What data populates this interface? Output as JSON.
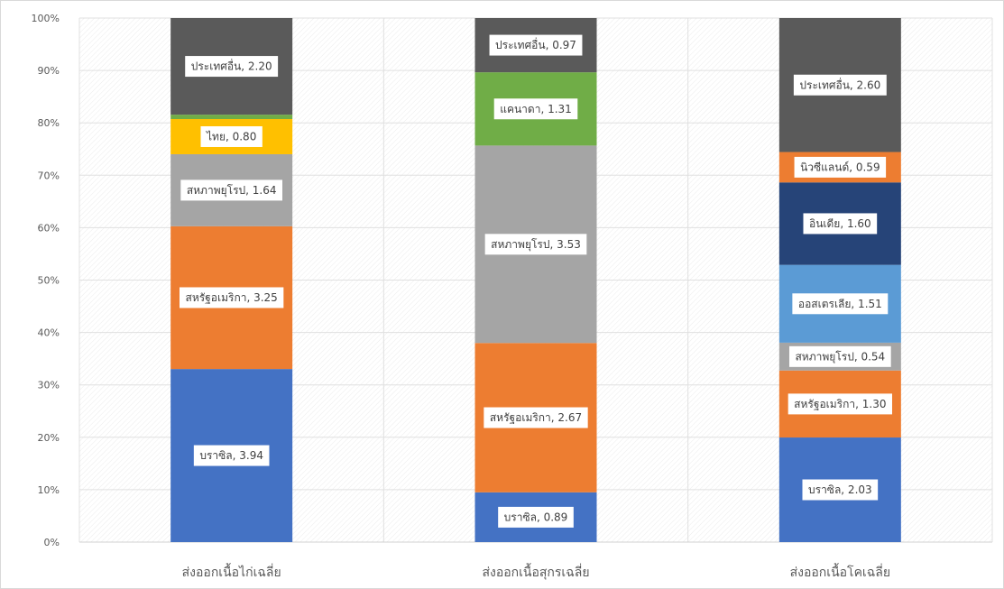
{
  "chart_data": {
    "type": "bar",
    "stacked": "percent",
    "title": "",
    "xlabel": "",
    "ylabel": "",
    "ylim": [
      0,
      100
    ],
    "yticks": [
      "0%",
      "10%",
      "20%",
      "30%",
      "40%",
      "50%",
      "60%",
      "70%",
      "80%",
      "90%",
      "100%"
    ],
    "grid": true,
    "categories": [
      "ส่งออกเนื้อไก่เฉลี่ย",
      "ส่งออกเนื้อสุกรเฉลี่ย",
      "ส่งออกเนื้อโคเฉลี่ย"
    ],
    "bars": [
      {
        "segments": [
          {
            "label": "บราซิล",
            "value": 3.94,
            "value_text": "3.94",
            "color": "#4472C4",
            "border": "#4472C4"
          },
          {
            "label": "สหรัฐอเมริกา",
            "value": 3.25,
            "value_text": "3.25",
            "color": "#ED7D31",
            "border": "#ED7D31"
          },
          {
            "label": "สหภาพยุโรป",
            "value": 1.64,
            "value_text": "1.64",
            "color": "#A5A5A5",
            "border": "#A5A5A5"
          },
          {
            "label": "ไทย",
            "value": 0.8,
            "value_text": "0.80",
            "color": "#FFC000",
            "border": "#FFC000"
          },
          {
            "label": "",
            "value": 0.1,
            "value_text": "",
            "color": "#70AD47",
            "border": "#70AD47"
          },
          {
            "label": "ประเทศอื่น",
            "value": 2.2,
            "value_text": "2.20",
            "color": "#5A5A5A",
            "border": "#5A5A5A"
          }
        ]
      },
      {
        "segments": [
          {
            "label": "บราซิล",
            "value": 0.89,
            "value_text": "0.89",
            "color": "#4472C4",
            "border": "#4472C4"
          },
          {
            "label": "สหรัฐอเมริกา",
            "value": 2.67,
            "value_text": "2.67",
            "color": "#ED7D31",
            "border": "#ED7D31"
          },
          {
            "label": "สหภาพยุโรป",
            "value": 3.53,
            "value_text": "3.53",
            "color": "#A5A5A5",
            "border": "#A5A5A5"
          },
          {
            "label": "แคนาดา",
            "value": 1.31,
            "value_text": "1.31",
            "color": "#70AD47",
            "border": "#70AD47"
          },
          {
            "label": "ประเทศอื่น",
            "value": 0.97,
            "value_text": "0.97",
            "color": "#5A5A5A",
            "border": "#5A5A5A"
          }
        ]
      },
      {
        "segments": [
          {
            "label": "บราซิล",
            "value": 2.03,
            "value_text": "2.03",
            "color": "#4472C4",
            "border": "#4472C4"
          },
          {
            "label": "สหรัฐอเมริกา",
            "value": 1.3,
            "value_text": "1.30",
            "color": "#ED7D31",
            "border": "#ED7D31"
          },
          {
            "label": "สหภาพยุโรป",
            "value": 0.54,
            "value_text": "0.54",
            "color": "#A5A5A5",
            "border": "#A5A5A5"
          },
          {
            "label": "ออสเตรเลีย",
            "value": 1.51,
            "value_text": "1.51",
            "color": "#5B9BD5",
            "border": "#5B9BD5"
          },
          {
            "label": "อินเดีย",
            "value": 1.6,
            "value_text": "1.60",
            "color": "#264478",
            "border": "#264478"
          },
          {
            "label": "นิวซีแลนด์",
            "value": 0.59,
            "value_text": "0.59",
            "color": "#ED7D31",
            "border": "#ED7D31"
          },
          {
            "label": "ประเทศอื่น",
            "value": 2.6,
            "value_text": "2.60",
            "color": "#5A5A5A",
            "border": "#5A5A5A"
          }
        ]
      }
    ]
  }
}
